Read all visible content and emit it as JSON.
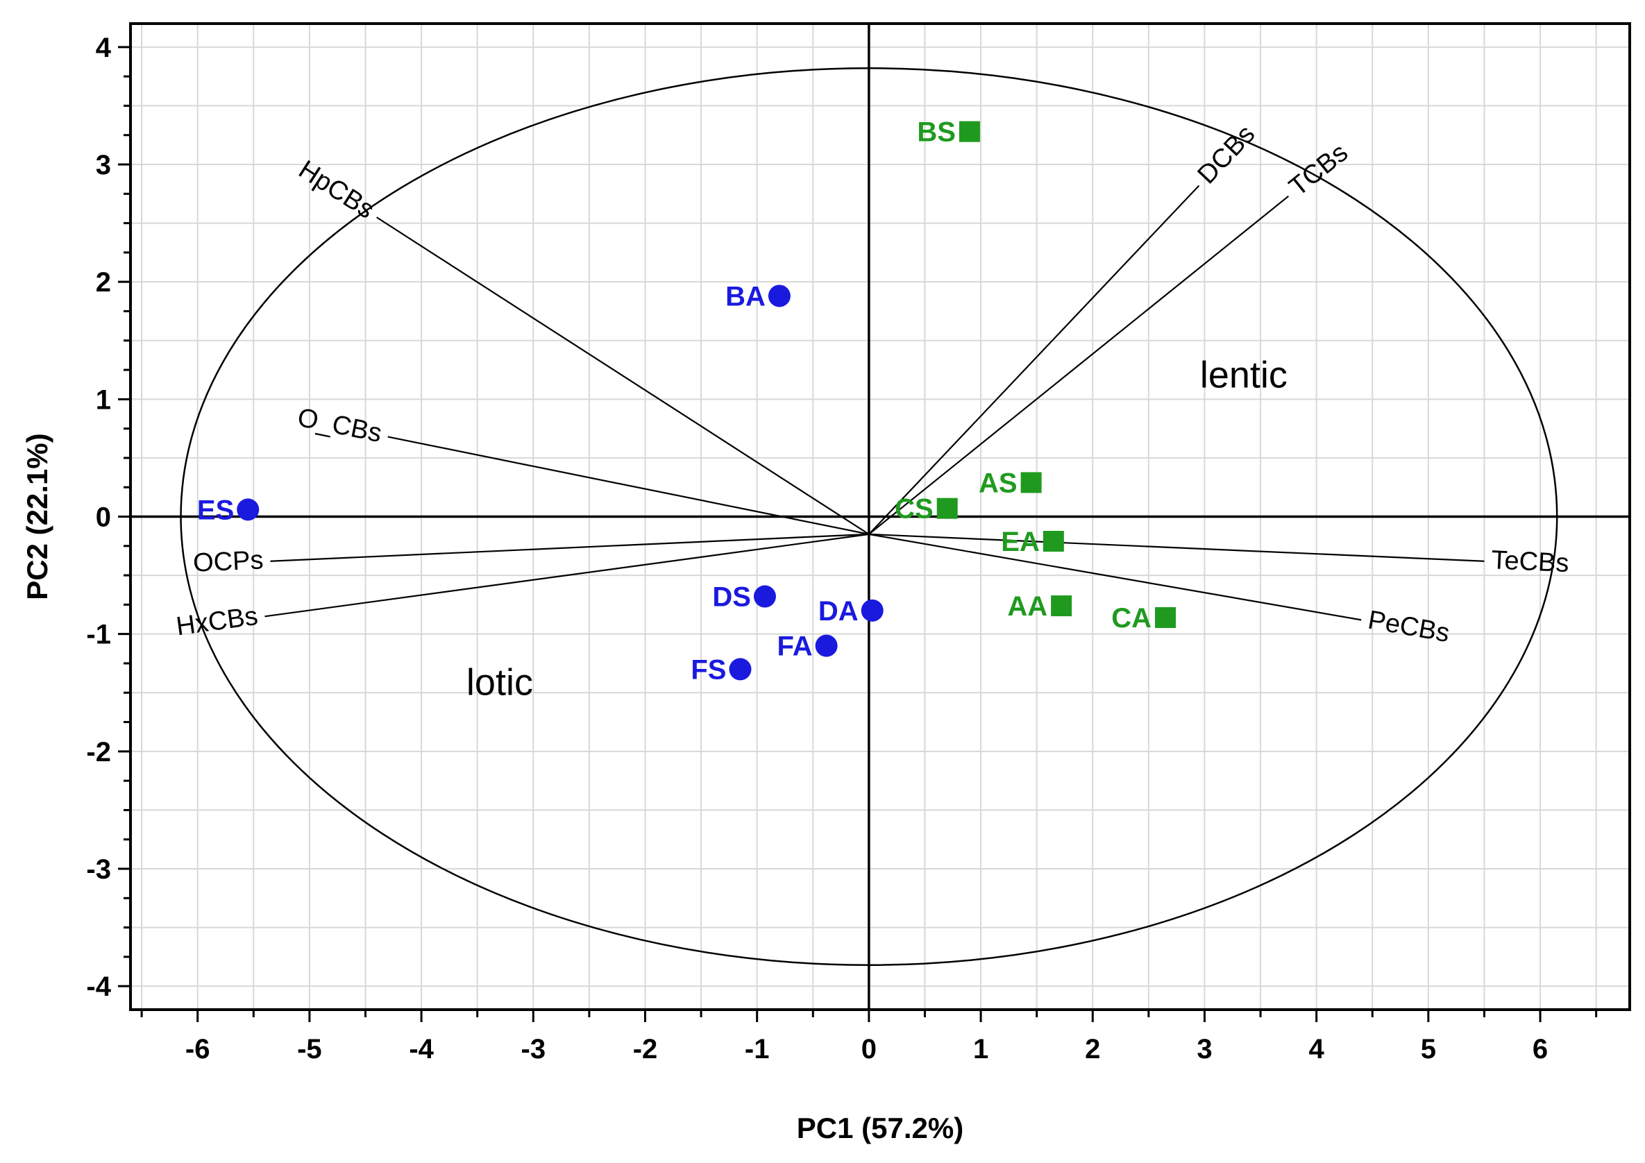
{
  "chart_data": {
    "type": "scatter",
    "title": "",
    "xlabel": "PC1  (57.2%)",
    "ylabel": "PC2  (22.1%)",
    "xlim": [
      -6.6,
      6.8
    ],
    "ylim": [
      -4.2,
      4.2
    ],
    "xticks": [
      -6,
      -5,
      -4,
      -3,
      -2,
      -1,
      0,
      1,
      2,
      3,
      4,
      5,
      6
    ],
    "yticks": [
      -4,
      -3,
      -2,
      -1,
      0,
      1,
      2,
      3,
      4
    ],
    "grid": true,
    "colors": {
      "lotic": "#1a1adf",
      "lentic": "#1f9a1f",
      "lines": "#000000"
    },
    "series": [
      {
        "name": "lotic",
        "marker": "circle",
        "points": [
          {
            "label": "BA",
            "x": -0.8,
            "y": 1.88
          },
          {
            "label": "ES",
            "x": -5.55,
            "y": 0.06
          },
          {
            "label": "DS",
            "x": -0.93,
            "y": -0.68
          },
          {
            "label": "DA",
            "x": 0.03,
            "y": -0.8
          },
          {
            "label": "FA",
            "x": -0.38,
            "y": -1.1
          },
          {
            "label": "FS",
            "x": -1.15,
            "y": -1.3
          }
        ]
      },
      {
        "name": "lentic",
        "marker": "square",
        "points": [
          {
            "label": "BS",
            "x": 0.9,
            "y": 3.28
          },
          {
            "label": "AS",
            "x": 1.45,
            "y": 0.29
          },
          {
            "label": "CS",
            "x": 0.7,
            "y": 0.07
          },
          {
            "label": "EA",
            "x": 1.65,
            "y": -0.21
          },
          {
            "label": "AA",
            "x": 1.72,
            "y": -0.76
          },
          {
            "label": "CA",
            "x": 2.65,
            "y": -0.86
          }
        ]
      }
    ],
    "loadings": {
      "origin": [
        0,
        -0.15
      ],
      "vectors": [
        {
          "label": "HpCBs",
          "x": -4.4,
          "y": 2.55
        },
        {
          "label": "O_CBs",
          "x": -4.3,
          "y": 0.68
        },
        {
          "label": "OCPs",
          "x": -5.35,
          "y": -0.38
        },
        {
          "label": "HxCBs",
          "x": -5.4,
          "y": -0.85
        },
        {
          "label": "DCBs",
          "x": 2.95,
          "y": 2.82
        },
        {
          "label": "TCBs",
          "x": 3.75,
          "y": 2.73
        },
        {
          "label": "TeCBs",
          "x": 5.5,
          "y": -0.38
        },
        {
          "label": "PeCBs",
          "x": 4.4,
          "y": -0.88
        }
      ]
    },
    "circle": {
      "cx": 0,
      "cy": 0,
      "rx": 6.15,
      "ry": 3.82
    },
    "annotations": [
      {
        "text": "lentic",
        "x": 3.35,
        "y": 1.1
      },
      {
        "text": "lotic",
        "x": -3.3,
        "y": -1.52
      }
    ]
  }
}
